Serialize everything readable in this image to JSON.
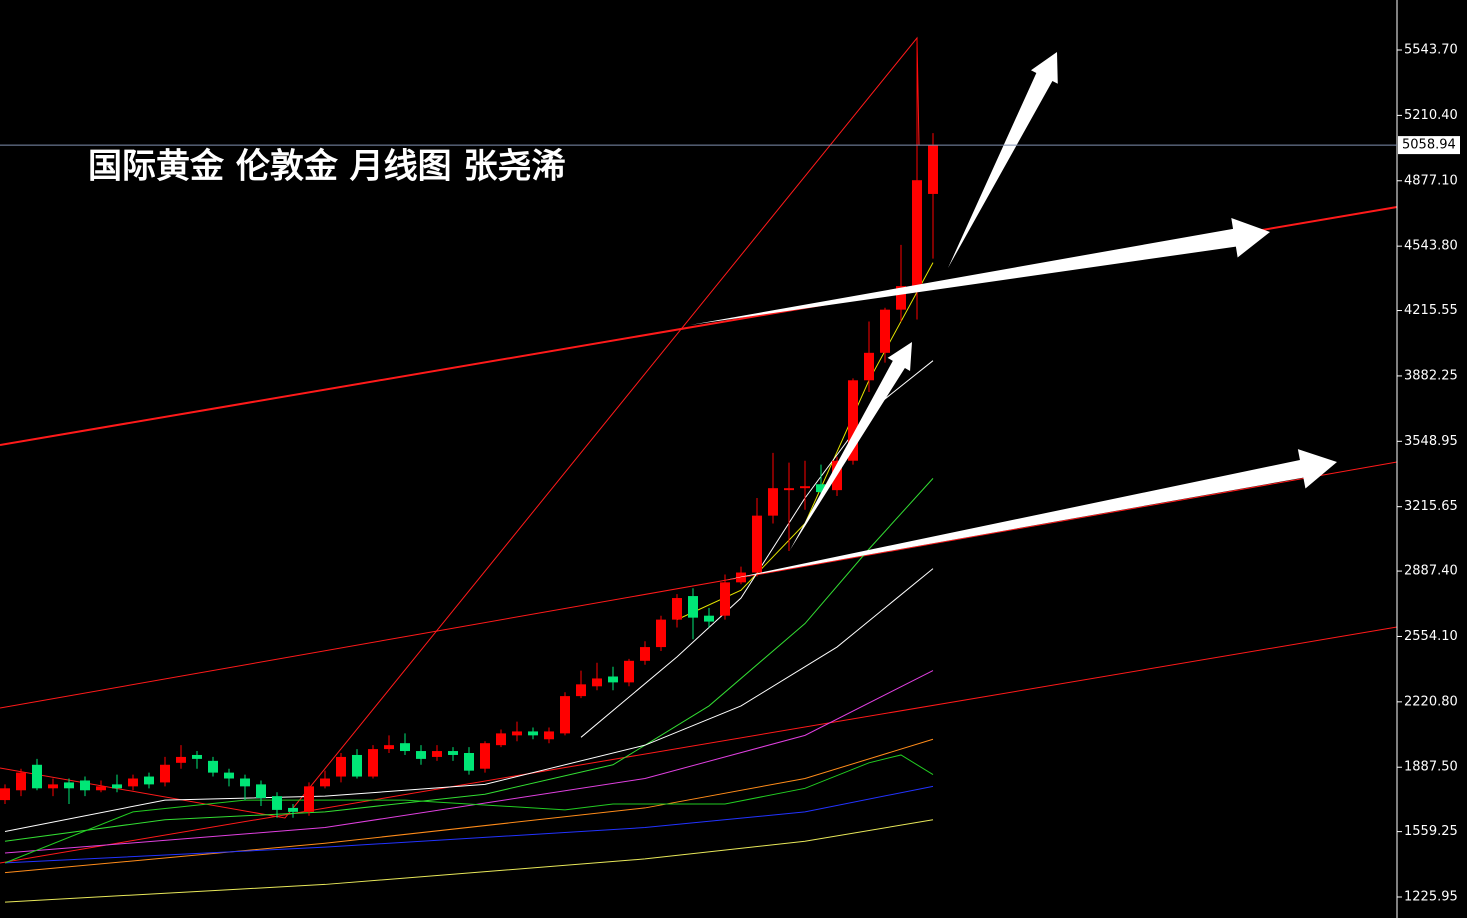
{
  "chart_data": {
    "type": "candlestick",
    "title": "国际黄金 伦敦金  月线图 张尧浠",
    "ylim": [
      1118.9,
      5798.6
    ],
    "yticks": [
      {
        "value": 5543.7,
        "label": "5543.70"
      },
      {
        "value": 5210.4,
        "label": "5210.40"
      },
      {
        "value": 4877.1,
        "label": "4877.10"
      },
      {
        "value": 4543.8,
        "label": "4543.80"
      },
      {
        "value": 4215.55,
        "label": "4215.55"
      },
      {
        "value": 3882.25,
        "label": "3882.25"
      },
      {
        "value": 3548.95,
        "label": "3548.95"
      },
      {
        "value": 3215.65,
        "label": "3215.65"
      },
      {
        "value": 2887.4,
        "label": "2887.40"
      },
      {
        "value": 2554.1,
        "label": "2554.10"
      },
      {
        "value": 2220.8,
        "label": "2220.80"
      },
      {
        "value": 1887.5,
        "label": "1887.50"
      },
      {
        "value": 1559.25,
        "label": "1559.25"
      },
      {
        "value": 1225.95,
        "label": "1225.95"
      }
    ],
    "last_price": 5058.94,
    "up_color": "#ff0000",
    "down_color": "#00e676",
    "open": [
      1720,
      1770,
      1900,
      1780,
      1810,
      1820,
      1770,
      1800,
      1790,
      1840,
      1810,
      1910,
      1950,
      1920,
      1860,
      1830,
      1800,
      1740,
      1680,
      1660,
      1790,
      1840,
      1950,
      1840,
      1980,
      2010,
      1970,
      1940,
      1970,
      1960,
      1880,
      2000,
      2050,
      2070,
      2030,
      2060,
      2250,
      2300,
      2350,
      2320,
      2430,
      2500,
      2640,
      2760,
      2660,
      2660,
      2830,
      2880,
      3170,
      3300,
      3310,
      3330,
      3300,
      3450,
      3860,
      4000,
      4220,
      4340,
      4810
    ],
    "high": [
      1800,
      1880,
      1930,
      1830,
      1830,
      1840,
      1820,
      1850,
      1850,
      1860,
      1940,
      2000,
      1970,
      1940,
      1880,
      1850,
      1820,
      1760,
      1700,
      1810,
      1870,
      1960,
      1980,
      2000,
      2050,
      2060,
      2000,
      2000,
      1990,
      1990,
      2020,
      2080,
      2120,
      2090,
      2090,
      2270,
      2380,
      2420,
      2400,
      2440,
      2530,
      2660,
      2770,
      2800,
      2700,
      2870,
      2910,
      3260,
      3490,
      3440,
      3450,
      3430,
      3470,
      3870,
      4160,
      4230,
      4550,
      5600,
      5120
    ],
    "low": [
      1700,
      1740,
      1770,
      1740,
      1700,
      1740,
      1760,
      1760,
      1770,
      1780,
      1790,
      1880,
      1880,
      1840,
      1790,
      1720,
      1690,
      1630,
      1630,
      1640,
      1780,
      1810,
      1830,
      1830,
      1960,
      1950,
      1900,
      1920,
      1920,
      1850,
      1860,
      1990,
      2020,
      2030,
      2010,
      2050,
      2240,
      2280,
      2280,
      2300,
      2410,
      2480,
      2600,
      2540,
      2600,
      2640,
      2820,
      2860,
      3130,
      2990,
      3200,
      3250,
      3270,
      3430,
      3800,
      3950,
      4160,
      4170,
      4480
    ],
    "close": [
      1780,
      1860,
      1780,
      1800,
      1780,
      1770,
      1790,
      1780,
      1830,
      1800,
      1900,
      1940,
      1930,
      1860,
      1830,
      1790,
      1730,
      1670,
      1660,
      1790,
      1830,
      1940,
      1840,
      1980,
      2000,
      1970,
      1930,
      1970,
      1950,
      1870,
      2010,
      2060,
      2070,
      2050,
      2070,
      2250,
      2310,
      2340,
      2320,
      2430,
      2500,
      2640,
      2750,
      2650,
      2630,
      2830,
      2880,
      3170,
      3310,
      3310,
      3320,
      3290,
      3450,
      3860,
      4000,
      4220,
      4340,
      4880,
      5058.94
    ],
    "series": [
      {
        "color": "#e6e600",
        "x": [
          42,
          46,
          50,
          54,
          58
        ],
        "values": [
          2640,
          2790,
          3130,
          3860,
          4460
        ]
      },
      {
        "color": "#ffffff",
        "x": [
          36,
          42,
          46,
          50,
          54,
          58
        ],
        "values": [
          2040,
          2450,
          2750,
          3260,
          3700,
          3960
        ]
      },
      {
        "color": "#33dd33",
        "x": [
          0,
          10,
          20,
          30,
          38,
          44,
          50,
          54,
          58
        ],
        "values": [
          1510,
          1620,
          1660,
          1750,
          1900,
          2200,
          2620,
          3000,
          3360
        ]
      },
      {
        "color": "#ffffff",
        "x": [
          0,
          10,
          20,
          30,
          40,
          46,
          52,
          58
        ],
        "values": [
          1560,
          1720,
          1740,
          1800,
          2000,
          2200,
          2500,
          2900
        ]
      },
      {
        "color": "#e040e0",
        "x": [
          0,
          20,
          40,
          50,
          58
        ],
        "values": [
          1450,
          1580,
          1830,
          2050,
          2380
        ]
      },
      {
        "color": "#ff8c1a",
        "x": [
          0,
          20,
          40,
          50,
          58
        ],
        "values": [
          1350,
          1500,
          1680,
          1830,
          2030
        ]
      },
      {
        "color": "#2233ff",
        "x": [
          0,
          20,
          40,
          50,
          58
        ],
        "values": [
          1400,
          1480,
          1580,
          1660,
          1790
        ]
      },
      {
        "color": "#e8e85a",
        "x": [
          0,
          20,
          40,
          50,
          58
        ],
        "values": [
          1200,
          1290,
          1420,
          1510,
          1620
        ]
      },
      {
        "color": "#22cc22",
        "x": [
          0,
          8,
          15,
          25,
          35,
          38,
          45,
          50,
          54,
          56,
          58
        ],
        "values": [
          1400,
          1660,
          1720,
          1720,
          1670,
          1700,
          1700,
          1780,
          1910,
          1950,
          1850
        ]
      }
    ]
  }
}
